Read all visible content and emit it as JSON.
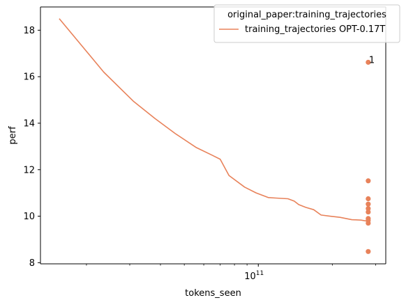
{
  "colors": {
    "series": "#e8825a",
    "axis": "#000000",
    "legend_border": "#cccccc",
    "background": "#ffffff"
  },
  "chart_data": {
    "type": "line",
    "xlabel": "tokens_seen",
    "ylabel": "perf",
    "x_scale": "log",
    "xlim": [
      13000000000,
      330000000000
    ],
    "ylim": [
      7.95,
      19.0
    ],
    "x_ticks": [
      {
        "value": 100000000000,
        "base": "10",
        "exp": "11"
      }
    ],
    "x_minor_ticks": [
      20000000000,
      30000000000,
      40000000000,
      50000000000,
      60000000000,
      70000000000,
      80000000000,
      90000000000,
      200000000000,
      300000000000
    ],
    "y_ticks": [
      8,
      10,
      12,
      14,
      16,
      18
    ],
    "grid": false,
    "legend": {
      "title": "original_paper:training_trajectories",
      "placement": "top-right",
      "entries": [
        "training_trajectories OPT-0.17T"
      ]
    },
    "series": [
      {
        "name": "training_trajectories OPT-0.17T",
        "type": "line",
        "x": [
          15500000000,
          23500000000,
          31000000000,
          38000000000,
          46000000000,
          56000000000,
          65000000000,
          70000000000,
          76000000000,
          88000000000,
          98000000000,
          110000000000,
          118000000000,
          132000000000,
          140000000000,
          146000000000,
          156000000000,
          168000000000,
          180000000000,
          196000000000,
          215000000000,
          240000000000,
          262000000000,
          272000000000,
          282000000000
        ],
        "y": [
          18.5,
          16.2,
          14.95,
          14.2,
          13.55,
          12.95,
          12.62,
          12.45,
          11.75,
          11.25,
          11.0,
          10.8,
          10.78,
          10.75,
          10.65,
          10.5,
          10.38,
          10.28,
          10.05,
          10.0,
          9.95,
          9.85,
          9.83,
          9.8,
          9.78
        ]
      },
      {
        "name": "",
        "type": "scatter",
        "x": [
          280000000000,
          280000000000,
          280000000000,
          280000000000,
          280000000000,
          280000000000,
          280000000000,
          280000000000,
          280000000000,
          280000000000
        ],
        "y": [
          16.62,
          11.52,
          10.75,
          10.52,
          10.33,
          10.18,
          9.9,
          9.82,
          9.7,
          8.48
        ]
      }
    ],
    "annotations": [
      {
        "text": "1",
        "x": 280000000000,
        "y": 16.62
      }
    ]
  }
}
